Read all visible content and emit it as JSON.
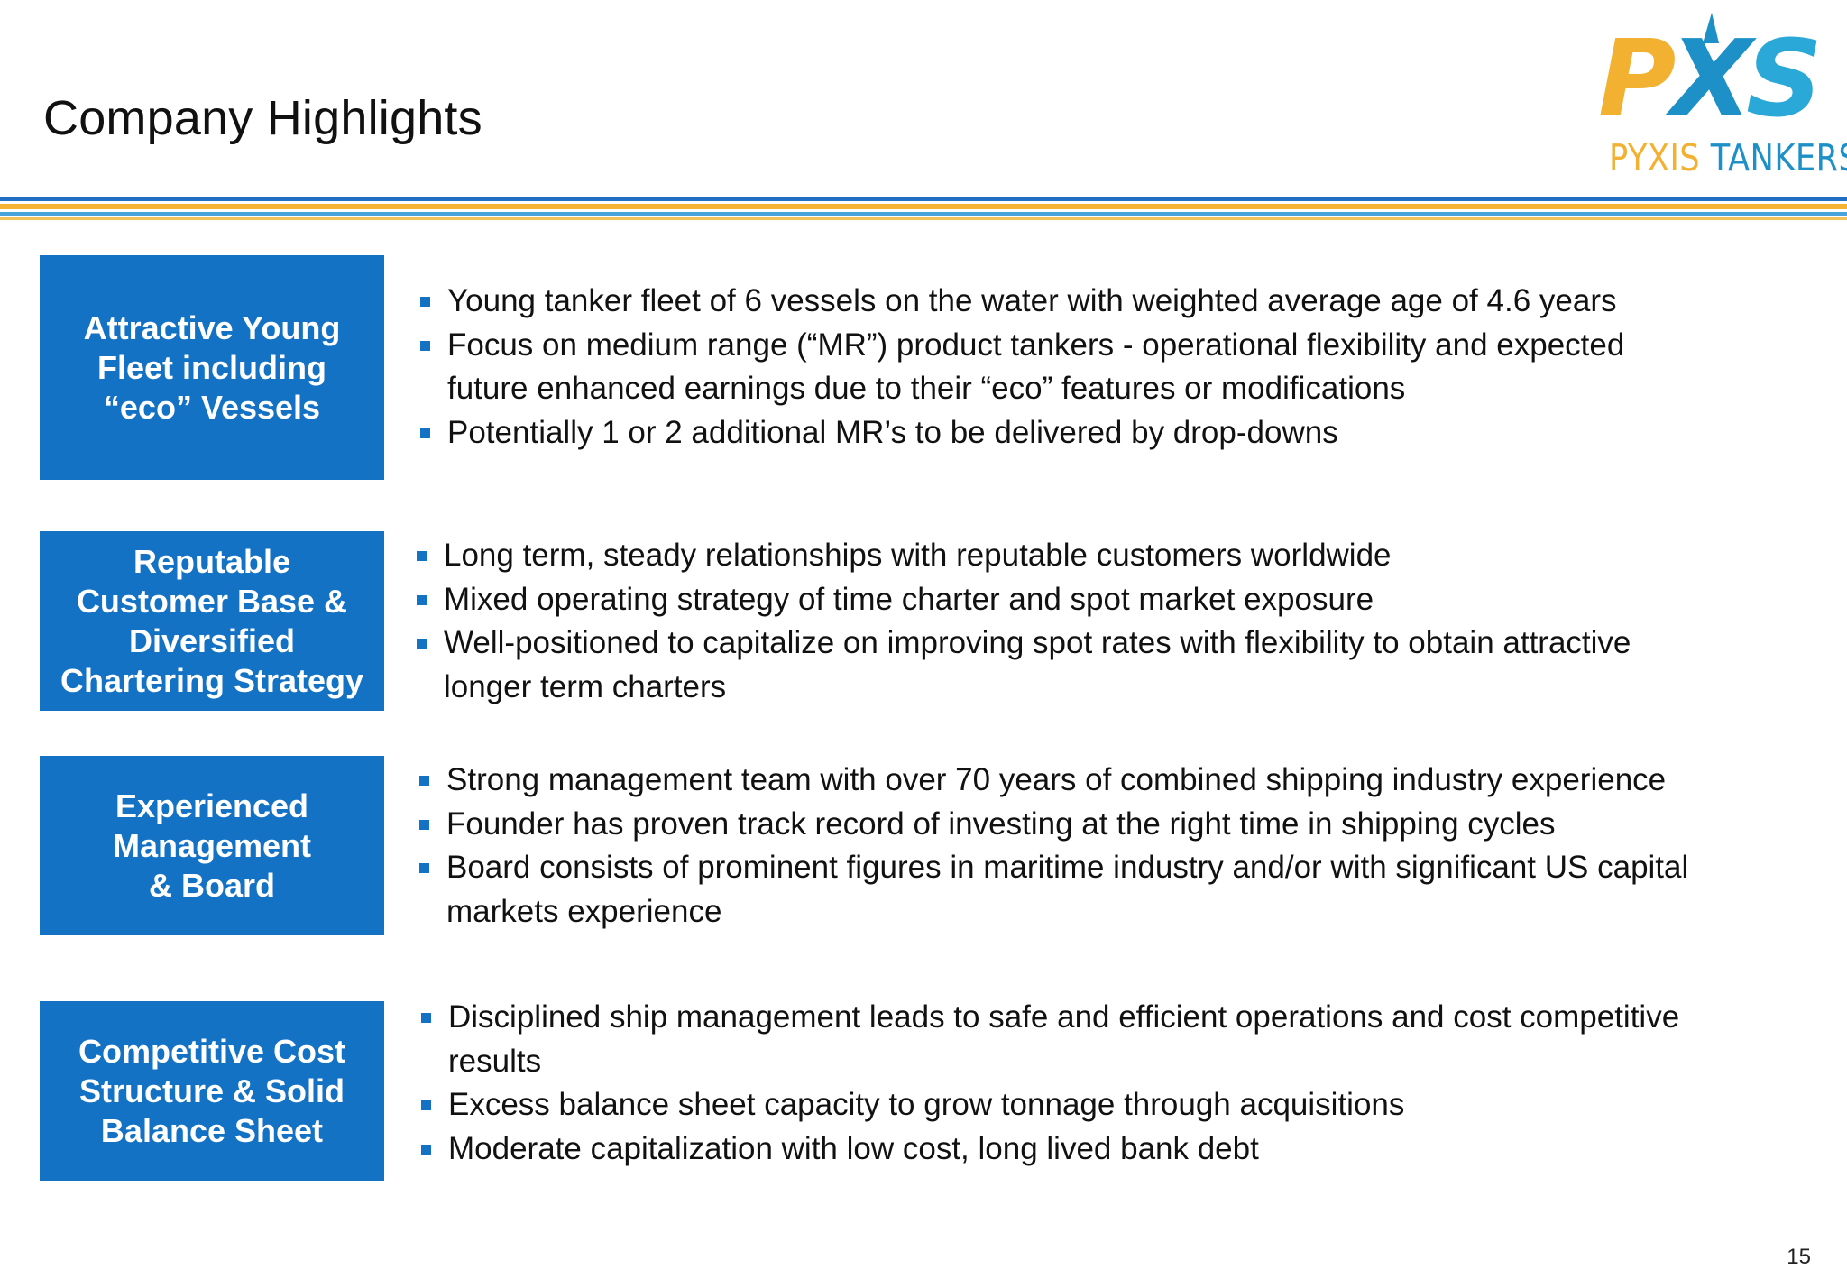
{
  "header": {
    "title": "Company Highlights"
  },
  "logo": {
    "mark_text": "PXS",
    "name_part1": "PYXIS ",
    "name_part2": "TANKERS",
    "colors": {
      "orange": "#f2b131",
      "blue": "#1e90c8"
    }
  },
  "colors": {
    "accent_blue": "#1372c4",
    "stripe_blue": "#1f6fc4",
    "stripe_orange": "#f4b331",
    "stripe_light_blue": "#4aa3dd"
  },
  "highlights": [
    {
      "label": "Attractive Young\nFleet including\n“eco” Vessels",
      "bullets": [
        "Young tanker fleet of 6 vessels on the water with weighted average age of 4.6 years",
        "Focus on medium range (“MR”) product tankers - operational flexibility and expected future enhanced earnings due to their “eco” features or modifications",
        "Potentially 1 or 2 additional MR’s to be delivered by drop-downs"
      ]
    },
    {
      "label": "Reputable\nCustomer Base &\nDiversified\nChartering Strategy",
      "bullets": [
        "Long term, steady relationships with reputable customers worldwide",
        "Mixed operating strategy of time charter and spot market exposure",
        "Well-positioned to capitalize on improving spot rates with flexibility to obtain attractive longer term charters"
      ]
    },
    {
      "label": "Experienced\nManagement\n& Board",
      "bullets": [
        "Strong management team with over 70 years of combined shipping industry experience",
        "Founder has proven track record of investing at the right time in shipping cycles",
        "Board consists of prominent figures in maritime industry and/or with significant US capital markets experience"
      ]
    },
    {
      "label": "Competitive Cost\nStructure & Solid\nBalance  Sheet",
      "bullets": [
        "Disciplined ship management leads to safe and efficient operations and cost competitive results",
        "Excess balance sheet capacity to grow tonnage through acquisitions",
        "Moderate capitalization with low cost, long lived bank debt"
      ]
    }
  ],
  "footer": {
    "page_number": "15"
  }
}
